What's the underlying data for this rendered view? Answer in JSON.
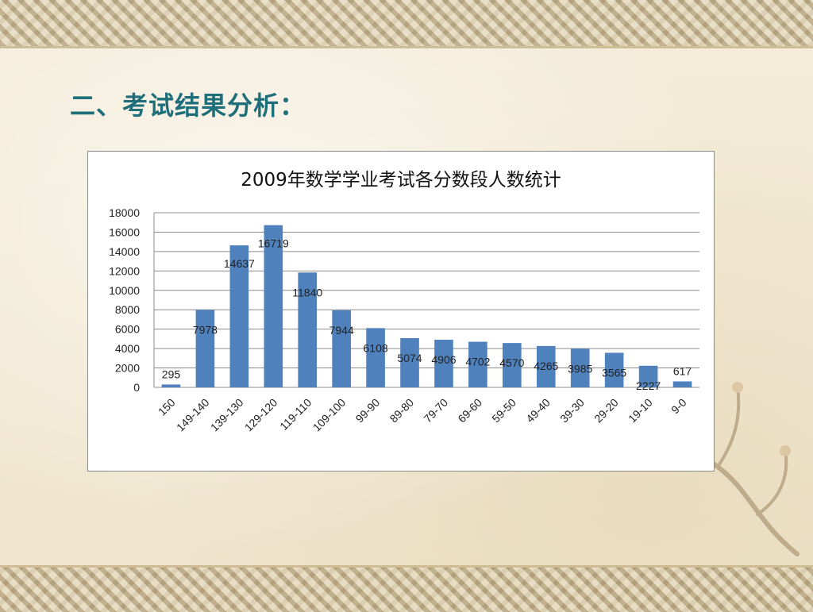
{
  "slide": {
    "title": "二、考试结果分析："
  },
  "colors": {
    "bar": "#4f81bd",
    "title": "#1f6f7a",
    "grid": "#8c8c8c"
  },
  "chart_data": {
    "type": "bar",
    "title": "2009年数学学业考试各分数段人数统计",
    "xlabel": "",
    "ylabel": "",
    "ylim": [
      0,
      18000
    ],
    "y_ticks": [
      0,
      2000,
      4000,
      6000,
      8000,
      10000,
      12000,
      14000,
      16000,
      18000
    ],
    "grid": true,
    "legend": "none",
    "categories": [
      "150",
      "149-140",
      "139-130",
      "129-120",
      "119-110",
      "109-100",
      "99-90",
      "89-80",
      "79-70",
      "69-60",
      "59-50",
      "49-40",
      "39-30",
      "29-20",
      "19-10",
      "9-0"
    ],
    "values": [
      295,
      7978,
      14637,
      16719,
      11840,
      7944,
      6108,
      5074,
      4906,
      4702,
      4570,
      4265,
      3985,
      3565,
      2227,
      617
    ]
  }
}
